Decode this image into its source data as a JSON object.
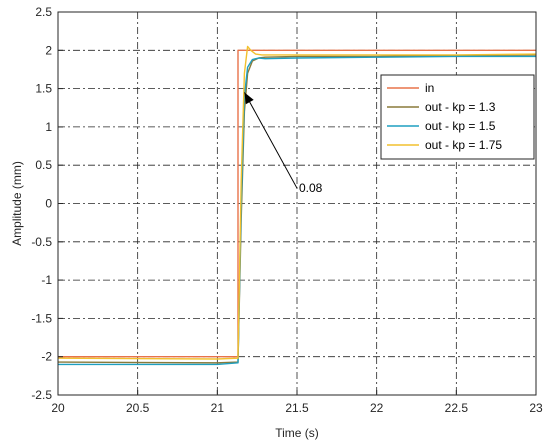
{
  "chart_data": {
    "type": "line",
    "xlabel": "Time (s)",
    "ylabel": "Amplitude (mm)",
    "xlim": [
      20,
      23
    ],
    "ylim": [
      -2.5,
      2.5
    ],
    "xticks": [
      "20",
      "20.5",
      "21",
      "21.5",
      "22",
      "22.5",
      "23"
    ],
    "yticks": [
      "-2.5",
      "-2",
      "-1.5",
      "-1",
      "-0.5",
      "0",
      "0.5",
      "1",
      "1.5",
      "2",
      "2.5"
    ],
    "grid": true,
    "legend_position": "top-right",
    "series": [
      {
        "name": "in",
        "color": "#e8734a",
        "x": [
          20,
          21.13,
          21.13,
          23
        ],
        "y": [
          -2.0,
          -2.0,
          2.0,
          2.0
        ]
      },
      {
        "name": "out - kp = 1.3",
        "color": "#8a7a3a",
        "x": [
          20,
          21.0,
          21.13,
          21.15,
          21.17,
          21.19,
          21.22,
          21.26,
          21.3,
          21.5,
          22.0,
          22.5,
          23.0
        ],
        "y": [
          -2.07,
          -2.08,
          -2.07,
          -0.2,
          1.2,
          1.7,
          1.86,
          1.9,
          1.91,
          1.92,
          1.92,
          1.93,
          1.94
        ]
      },
      {
        "name": "out - kp = 1.5",
        "color": "#1f9fc0",
        "x": [
          20,
          21.0,
          21.13,
          21.15,
          21.17,
          21.19,
          21.22,
          21.26,
          21.3,
          21.5,
          22.0,
          22.5,
          23.0
        ],
        "y": [
          -2.1,
          -2.1,
          -2.08,
          0.0,
          1.4,
          1.78,
          1.88,
          1.9,
          1.89,
          1.9,
          1.91,
          1.92,
          1.92
        ]
      },
      {
        "name": "out - kp = 1.75",
        "color": "#f2c12e",
        "x": [
          20,
          21.0,
          21.13,
          21.15,
          21.17,
          21.19,
          21.21,
          21.24,
          21.28,
          21.5,
          22.0,
          22.5,
          23.0
        ],
        "y": [
          -2.02,
          -2.03,
          -2.02,
          0.3,
          1.7,
          2.05,
          2.0,
          1.95,
          1.94,
          1.94,
          1.94,
          1.94,
          1.95
        ]
      }
    ],
    "annotation": {
      "text": "0.08",
      "arrow_from": [
        21.5,
        0.2
      ],
      "arrow_to": [
        21.17,
        1.45
      ]
    }
  }
}
